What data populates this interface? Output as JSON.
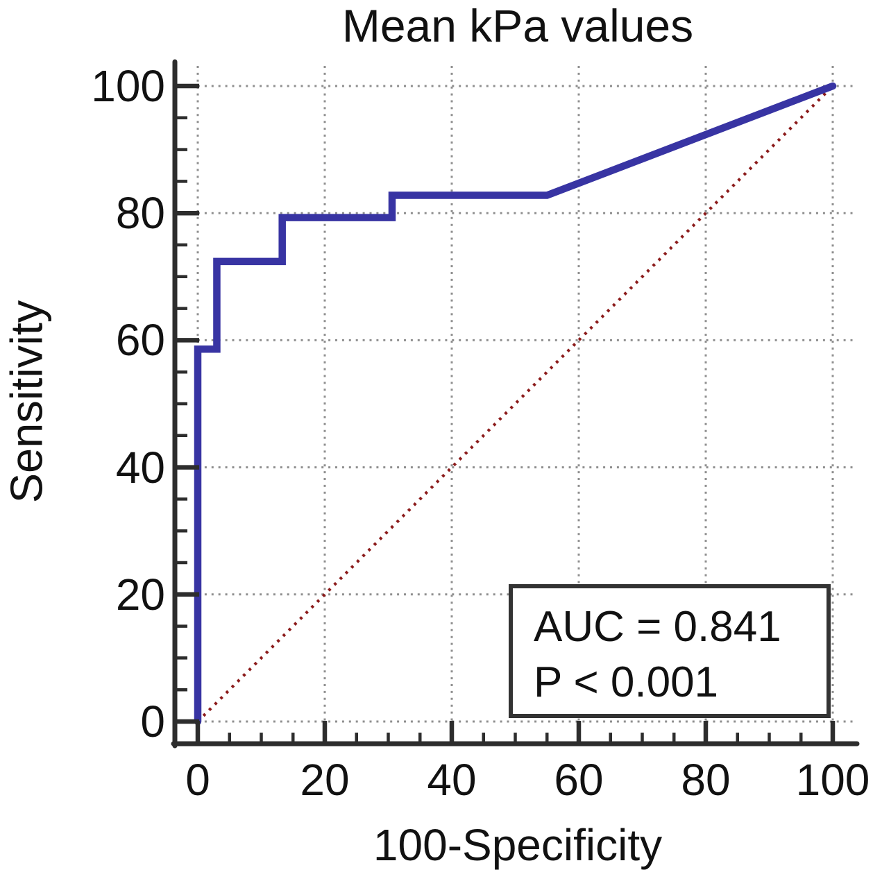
{
  "colors": {
    "curve": "#3834a3",
    "reference_line": "#8b1a1a",
    "gridline": "#8f8f8f",
    "axis": "#2d2d2d",
    "text": "#111111",
    "annotation_border": "#333333",
    "background": "#ffffff"
  },
  "annotation_box": {
    "auc_text": "AUC = 0.841",
    "p_text": "P < 0.001"
  },
  "chart_data": {
    "type": "line",
    "subtype": "roc-curve",
    "title": "Mean kPa values",
    "xlabel": "100-Specificity",
    "ylabel": "Sensitivity",
    "xlim": [
      0,
      100
    ],
    "ylim": [
      0,
      100
    ],
    "x_ticks": [
      0,
      20,
      40,
      60,
      80,
      100
    ],
    "y_ticks": [
      0,
      20,
      40,
      60,
      80,
      100
    ],
    "minor_tick_step": 5,
    "grid": true,
    "grid_style": "dotted",
    "legend_position": "none",
    "series": [
      {
        "name": "ROC curve (Mean kPa values)",
        "color": "#3834a3",
        "style": "solid",
        "points": [
          [
            0,
            0
          ],
          [
            0,
            58.6
          ],
          [
            3,
            58.6
          ],
          [
            3,
            72.4
          ],
          [
            13.3,
            72.4
          ],
          [
            13.3,
            79.3
          ],
          [
            30.6,
            79.3
          ],
          [
            30.6,
            82.8
          ],
          [
            55,
            82.8
          ],
          [
            100,
            100
          ]
        ]
      }
    ],
    "reference_line": {
      "name": "chance diagonal",
      "color": "#8b1a1a",
      "style": "dotted",
      "points": [
        [
          0,
          0
        ],
        [
          100,
          100
        ]
      ]
    },
    "annotations": [
      {
        "text": "AUC = 0.841"
      },
      {
        "text": "P < 0.001"
      }
    ]
  }
}
